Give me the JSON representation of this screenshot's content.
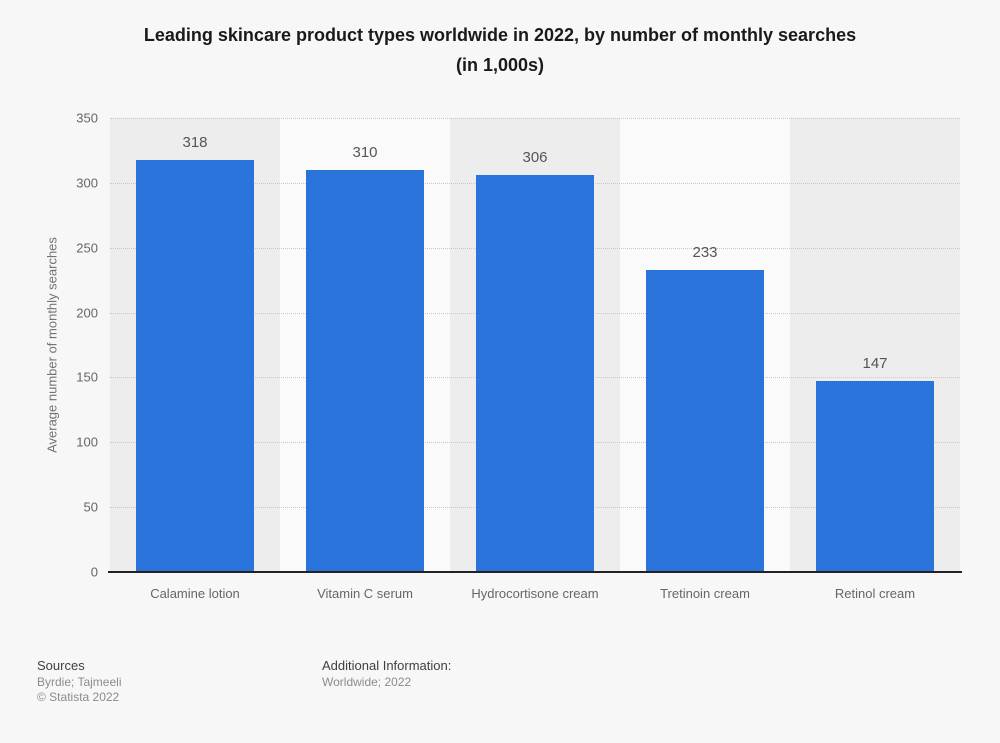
{
  "title": {
    "line1": "Leading skincare product types worldwide in 2022, by number of monthly searches",
    "line2": "(in 1,000s)"
  },
  "chart_data": {
    "type": "bar",
    "categories": [
      "Calamine lotion",
      "Vitamin C serum",
      "Hydrocortisone cream",
      "Tretinoin cream",
      "Retinol cream"
    ],
    "values": [
      318,
      310,
      306,
      233,
      147
    ],
    "title": "Leading skincare product types worldwide in 2022, by number of monthly searches (in 1,000s)",
    "xlabel": "",
    "ylabel": "Average number of monthly searches",
    "ylim": [
      0,
      350
    ],
    "yticks": [
      0,
      50,
      100,
      150,
      200,
      250,
      300,
      350
    ],
    "grid": "horizontal-dotted",
    "legend": "none",
    "bar_color": "#2a73db",
    "band_colors": [
      "#ededed",
      "#fafafa"
    ],
    "axis_line_color": "#222222",
    "value_labels_shown": true
  },
  "footer": {
    "sources_label": "Sources",
    "sources_line": "Byrdie; Tajmeeli",
    "copyright": "© Statista 2022",
    "additional_label": "Additional Information:",
    "additional_line": "Worldwide; 2022"
  }
}
